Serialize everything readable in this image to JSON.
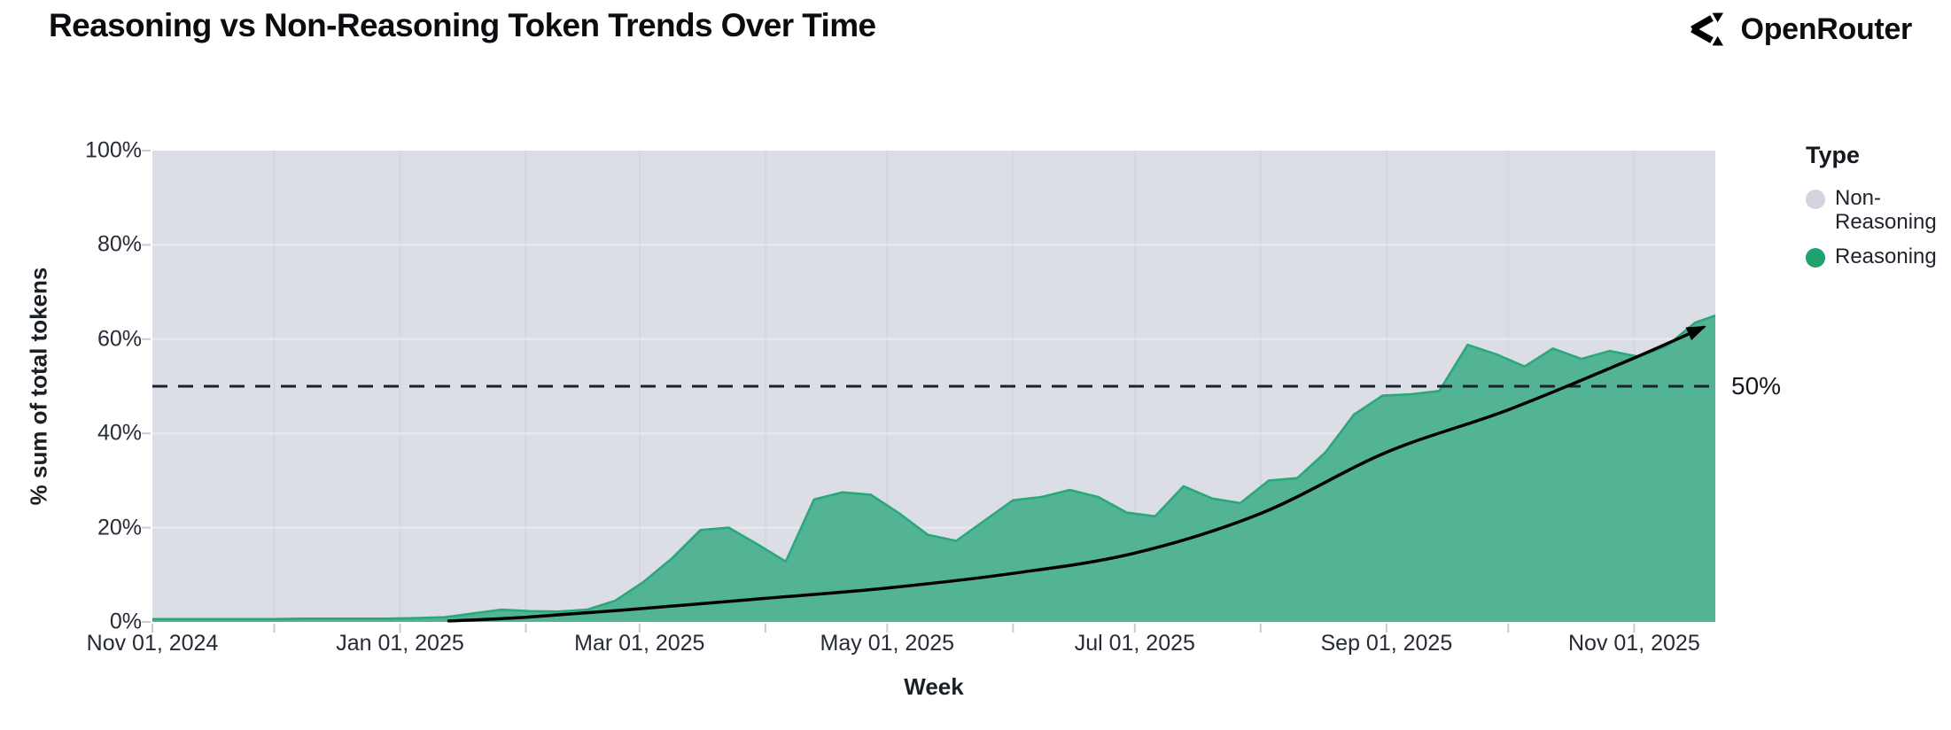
{
  "header": {
    "title": "Reasoning vs Non-Reasoning Token Trends Over Time",
    "brand": "OpenRouter"
  },
  "colors": {
    "reasoning_fill": "#52b494",
    "reasoning_stroke": "#2aa87c",
    "reasoning_legend": "#1fa26e",
    "non_reasoning_fill": "#dcdee6",
    "non_reasoning_legend": "#d2d3dc",
    "gridline_vertical": "#cdd0db",
    "gridline_horizontal": "#ebedf2",
    "annotation_line": "#1c222e",
    "trend_line": "#000000",
    "axis_text": "#262b36"
  },
  "chart_data": {
    "type": "area",
    "stacking": "percent",
    "title": "Reasoning vs Non-Reasoning Token Trends Over Time",
    "xlabel": "Week",
    "ylabel": "% sum of total tokens",
    "ylim": [
      0,
      100
    ],
    "x_range": [
      "2024-11-01",
      "2025-11-21"
    ],
    "grid": true,
    "legend_position": "right",
    "y_ticks": [
      {
        "label": "0%",
        "pct": 0
      },
      {
        "label": "20%",
        "pct": 20
      },
      {
        "label": "40%",
        "pct": 40
      },
      {
        "label": "60%",
        "pct": 60
      },
      {
        "label": "80%",
        "pct": 80
      },
      {
        "label": "100%",
        "pct": 100
      }
    ],
    "x_ticks": [
      {
        "label": "Nov 01, 2024",
        "date": "2024-11-01"
      },
      {
        "label": "Jan 01, 2025",
        "date": "2025-01-01"
      },
      {
        "label": "Mar 01, 2025",
        "date": "2025-03-01"
      },
      {
        "label": "May 01, 2025",
        "date": "2025-05-01"
      },
      {
        "label": "Jul 01, 2025",
        "date": "2025-07-01"
      },
      {
        "label": "Sep 01, 2025",
        "date": "2025-09-01"
      },
      {
        "label": "Nov 01, 2025",
        "date": "2025-11-01"
      }
    ],
    "weeks": [
      "2024-11-03",
      "2024-11-10",
      "2024-11-17",
      "2024-11-24",
      "2024-12-01",
      "2024-12-08",
      "2024-12-15",
      "2024-12-22",
      "2024-12-29",
      "2025-01-05",
      "2025-01-12",
      "2025-01-19",
      "2025-01-26",
      "2025-02-02",
      "2025-02-09",
      "2025-02-16",
      "2025-02-23",
      "2025-03-02",
      "2025-03-09",
      "2025-03-16",
      "2025-03-23",
      "2025-03-30",
      "2025-04-06",
      "2025-04-13",
      "2025-04-20",
      "2025-04-27",
      "2025-05-04",
      "2025-05-11",
      "2025-05-18",
      "2025-05-25",
      "2025-06-01",
      "2025-06-08",
      "2025-06-15",
      "2025-06-22",
      "2025-06-29",
      "2025-07-06",
      "2025-07-13",
      "2025-07-20",
      "2025-07-27",
      "2025-08-03",
      "2025-08-10",
      "2025-08-17",
      "2025-08-24",
      "2025-08-31",
      "2025-09-07",
      "2025-09-14",
      "2025-09-21",
      "2025-09-28",
      "2025-10-05",
      "2025-10-12",
      "2025-10-19",
      "2025-10-26",
      "2025-11-02",
      "2025-11-09",
      "2025-11-16"
    ],
    "series": [
      {
        "name": "Reasoning",
        "color": "#1fa26e",
        "values": [
          0.6,
          0.6,
          0.6,
          0.6,
          0.6,
          0.7,
          0.7,
          0.7,
          0.7,
          0.8,
          1.0,
          1.8,
          2.6,
          2.3,
          2.2,
          2.6,
          4.5,
          8.5,
          13.5,
          19.5,
          20.0,
          16.5,
          12.8,
          26.0,
          27.5,
          27.0,
          23.0,
          18.5,
          17.2,
          21.5,
          25.8,
          26.5,
          28.0,
          26.5,
          23.2,
          22.4,
          28.8,
          26.2,
          25.2,
          30.0,
          30.5,
          36.0,
          44.0,
          48.0,
          48.3,
          49.0,
          58.8,
          56.8,
          54.2,
          58.0,
          55.8,
          57.5,
          56.3,
          58.5,
          63.5
        ]
      },
      {
        "name": "Non-Reasoning",
        "color": "#d2d3dc",
        "values": [
          99.4,
          99.4,
          99.4,
          99.4,
          99.4,
          99.3,
          99.3,
          99.3,
          99.3,
          99.2,
          99.0,
          98.2,
          97.4,
          97.7,
          97.8,
          97.4,
          95.5,
          91.5,
          86.5,
          80.5,
          80.0,
          83.5,
          87.2,
          74.0,
          72.5,
          73.0,
          77.0,
          81.5,
          82.8,
          78.5,
          74.2,
          73.5,
          72.0,
          73.5,
          76.8,
          77.6,
          71.2,
          73.8,
          74.8,
          70.0,
          69.5,
          64.0,
          56.0,
          52.0,
          51.7,
          51.0,
          41.2,
          43.2,
          45.8,
          42.0,
          44.2,
          42.5,
          43.7,
          41.5,
          36.5
        ]
      }
    ],
    "right_edge_partial_week_pct": 65.0,
    "annotation": {
      "label": "50%",
      "y": 50,
      "style": "dashed"
    },
    "trend": {
      "style": "solid-arrow",
      "points": [
        {
          "date": "2025-01-13",
          "pct": 0.2
        },
        {
          "date": "2025-02-01",
          "pct": 1.0
        },
        {
          "date": "2025-03-01",
          "pct": 2.8
        },
        {
          "date": "2025-04-01",
          "pct": 5.0
        },
        {
          "date": "2025-05-01",
          "pct": 7.2
        },
        {
          "date": "2025-06-01",
          "pct": 10.3
        },
        {
          "date": "2025-07-01",
          "pct": 14.6
        },
        {
          "date": "2025-08-01",
          "pct": 23.0
        },
        {
          "date": "2025-09-01",
          "pct": 36.0
        },
        {
          "date": "2025-10-01",
          "pct": 45.0
        },
        {
          "date": "2025-11-01",
          "pct": 56.0
        },
        {
          "date": "2025-11-18",
          "pct": 62.5
        }
      ]
    },
    "legend": {
      "title": "Type",
      "entries": [
        {
          "label": "Non-Reasoning",
          "color": "#d2d3dc"
        },
        {
          "label": "Reasoning",
          "color": "#1fa26e"
        }
      ]
    }
  }
}
